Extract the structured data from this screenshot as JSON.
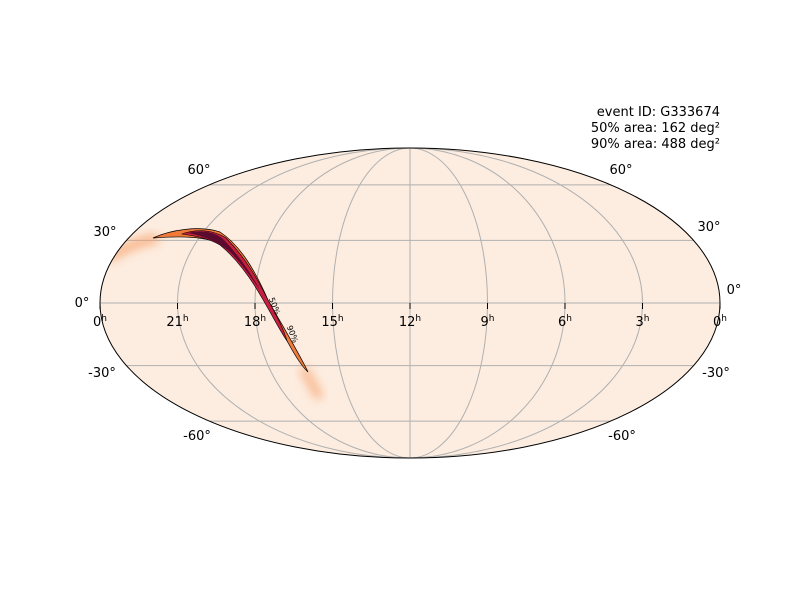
{
  "annotation": [
    "event ID: G333674",
    "50% area: 162 deg²",
    "90% area: 488 deg²"
  ],
  "lat_labels_left": [
    "60°",
    "30°",
    "0°",
    "-30°",
    "-60°"
  ],
  "lat_labels_right": [
    "60°",
    "30°",
    "0°",
    "-30°",
    "-60°"
  ],
  "ra_labels": [
    {
      "hour": "0",
      "unit": "h"
    },
    {
      "hour": "21",
      "unit": "h"
    },
    {
      "hour": "18",
      "unit": "h"
    },
    {
      "hour": "15",
      "unit": "h"
    },
    {
      "hour": "12",
      "unit": "h"
    },
    {
      "hour": "9",
      "unit": "h"
    },
    {
      "hour": "6",
      "unit": "h"
    },
    {
      "hour": "3",
      "unit": "h"
    },
    {
      "hour": "0",
      "unit": "h"
    }
  ],
  "contour_labels": [
    "50%",
    "90%"
  ]
}
